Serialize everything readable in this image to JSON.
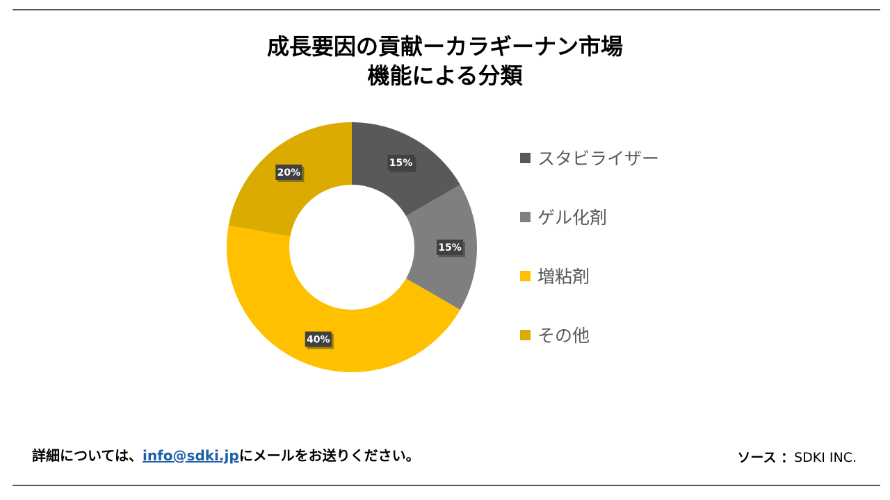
{
  "title_line1": "成長要因の貢献ーカラギーナン市場",
  "title_line2": "機能による分類",
  "chart_data": {
    "type": "pie",
    "donut": true,
    "categories": [
      "スタビライザー",
      "ゲル化剤",
      "増粘剤",
      "その他"
    ],
    "values": [
      15,
      15,
      40,
      20
    ],
    "data_labels": [
      "15%",
      "15%",
      "40%",
      "20%"
    ],
    "colors": [
      "#595959",
      "#7f7f7f",
      "#ffc000",
      "#dcab00"
    ],
    "legend_position": "right",
    "start_angle": "top, clockwise"
  },
  "footer": {
    "prefix": "詳細については、",
    "email": "info@sdki.jp",
    "suffix": "にメールをお送りください。",
    "source_label": "ソース ：",
    "source_name": "SDKI INC."
  }
}
